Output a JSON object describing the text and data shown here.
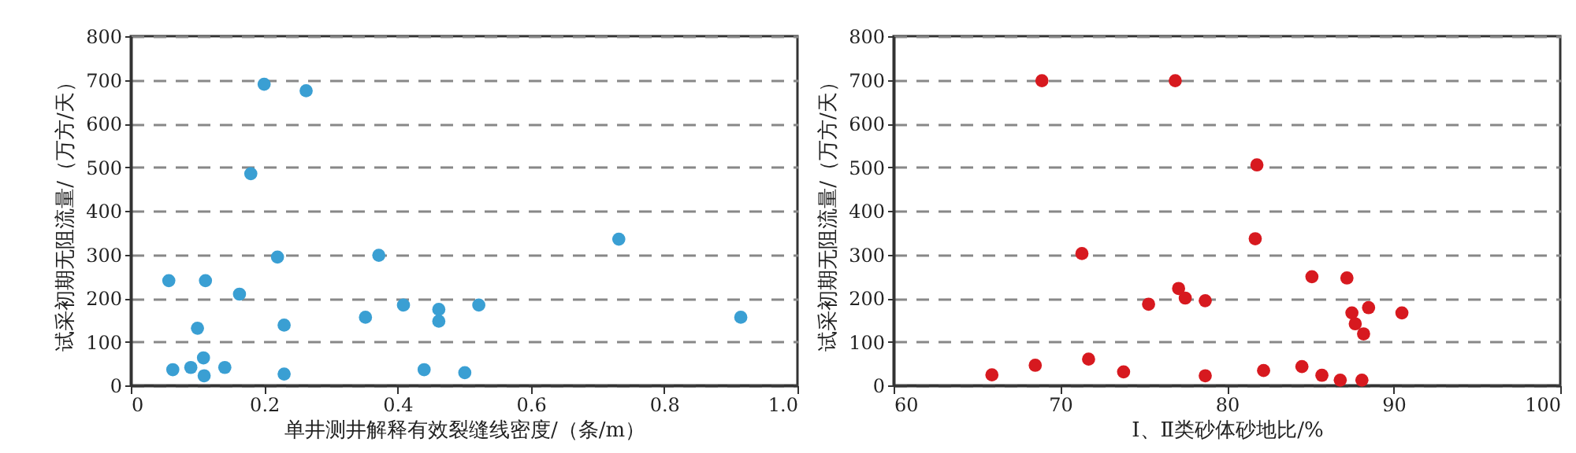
{
  "chart_data": [
    {
      "type": "scatter",
      "xlabel": "单井测井解释有效裂缝线密度/（条/m）",
      "ylabel": "试采初期无阻流量/（万方/天）",
      "xlim": [
        0,
        1.0
      ],
      "xticks": [
        0,
        0.2,
        0.4,
        0.6,
        0.8,
        {
          "value": 1.0,
          "label": "1.0"
        }
      ],
      "ylim": [
        0,
        800
      ],
      "yticks": [
        0,
        100,
        200,
        300,
        400,
        500,
        600,
        700,
        800
      ],
      "grid": "y",
      "marker": "circle",
      "legend": false,
      "series": [
        {
          "color": "#3a9fd3",
          "x": [
            0.2,
            0.263,
            0.18,
            0.22,
            0.057,
            0.112,
            0.163,
            0.1,
            0.23,
            0.109,
            0.063,
            0.09,
            0.141,
            0.11,
            0.23,
            0.372,
            0.352,
            0.409,
            0.732,
            0.462,
            0.462,
            0.522,
            0.915,
            0.44,
            0.501
          ],
          "values": [
            690,
            675,
            485,
            294,
            240,
            240,
            209,
            131,
            138,
            63,
            36,
            41,
            41,
            22,
            26,
            298,
            156,
            184,
            335,
            174,
            147,
            184,
            156,
            36,
            29
          ]
        }
      ]
    },
    {
      "type": "scatter",
      "xlabel": "Ⅰ、Ⅱ类砂体砂地比/%",
      "ylabel": "试采初期无阻流量/（万方/天）",
      "xlim": [
        60,
        100
      ],
      "xticks": [
        60,
        70,
        80,
        90,
        100
      ],
      "ylim": [
        0,
        800
      ],
      "yticks": [
        0,
        100,
        200,
        300,
        400,
        500,
        600,
        700,
        800
      ],
      "grid": "y",
      "marker": "circle",
      "legend": false,
      "series": [
        {
          "color": "#d7191f",
          "x": [
            68.9,
            76.9,
            71.3,
            75.3,
            77.1,
            65.9,
            68.5,
            71.7,
            73.8,
            77.5,
            78.7,
            81.8,
            81.7,
            78.7,
            82.2,
            85.1,
            87.2,
            87.5,
            88.5,
            87.7,
            88.2,
            90.5,
            84.5,
            85.7,
            86.8,
            88.1
          ],
          "values": [
            698,
            698,
            302,
            186,
            222,
            24,
            46,
            60,
            31,
            200,
            194,
            505,
            336,
            22,
            34,
            249,
            246,
            166,
            178,
            141,
            118,
            166,
            43,
            23,
            12,
            12
          ]
        }
      ]
    }
  ]
}
